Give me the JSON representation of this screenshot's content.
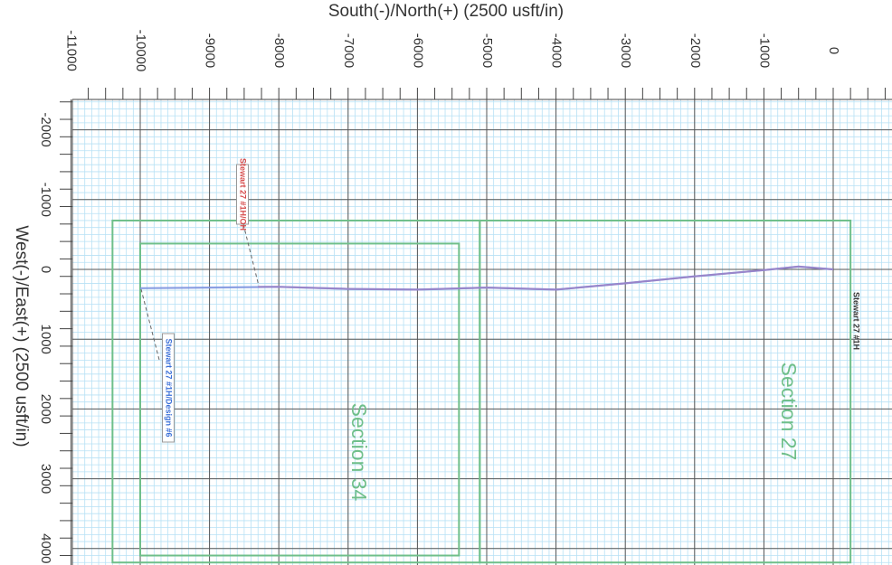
{
  "chart_data": {
    "type": "line",
    "xlabel": "South(-)/North(+) (2500 usft/in)",
    "ylabel": "West(-)/East(+) (2500 usft/in)",
    "xlim": [
      -11000,
      800
    ],
    "ylim": [
      -2450,
      4200
    ],
    "x_ticks": [
      -11000,
      -10000,
      -9000,
      -8000,
      -7000,
      -6000,
      -5000,
      -4000,
      -3000,
      -2000,
      -1000,
      0
    ],
    "y_ticks": [
      -2000,
      -1000,
      0,
      1000,
      2000,
      3000,
      4000
    ],
    "grid": true,
    "series": [
      {
        "name": "Stewart 27 #1H/Design #6",
        "color": "#7f96e0",
        "x": [
          0,
          -500,
          -1000,
          -2000,
          -3000,
          -4000,
          -5000,
          -6000,
          -7000,
          -8000,
          -9000,
          -10000
        ],
        "y": [
          0,
          -40,
          10,
          100,
          200,
          290,
          260,
          290,
          280,
          250,
          260,
          270
        ]
      },
      {
        "name": "Stewart 27 #1H/OH",
        "color": "#9a82c7",
        "x": [
          0,
          -500,
          -1000,
          -2000,
          -3000,
          -4000,
          -5000,
          -6000,
          -7000,
          -8000,
          -8300
        ],
        "y": [
          0,
          -40,
          10,
          100,
          200,
          290,
          260,
          290,
          280,
          250,
          250
        ]
      }
    ],
    "sections": [
      {
        "label": "Section 27",
        "x_range": [
          -5100,
          250
        ],
        "y_range": [
          -700,
          4200
        ]
      },
      {
        "label": "Section 34",
        "x_range": [
          -10400,
          -5100
        ],
        "y_range": [
          -700,
          4200
        ]
      },
      {
        "label": "",
        "x_range": [
          -10000,
          -5400
        ],
        "y_range": [
          -370,
          4100
        ]
      }
    ],
    "annotations": [
      {
        "text": "Stewart 27 #1H/OH",
        "color": "#d64a4a"
      },
      {
        "text": "Stewart 27 #1H/Design #6",
        "color": "#3a6fd8"
      },
      {
        "text": "Stewart 27 #1H",
        "color": "#333333"
      }
    ]
  }
}
